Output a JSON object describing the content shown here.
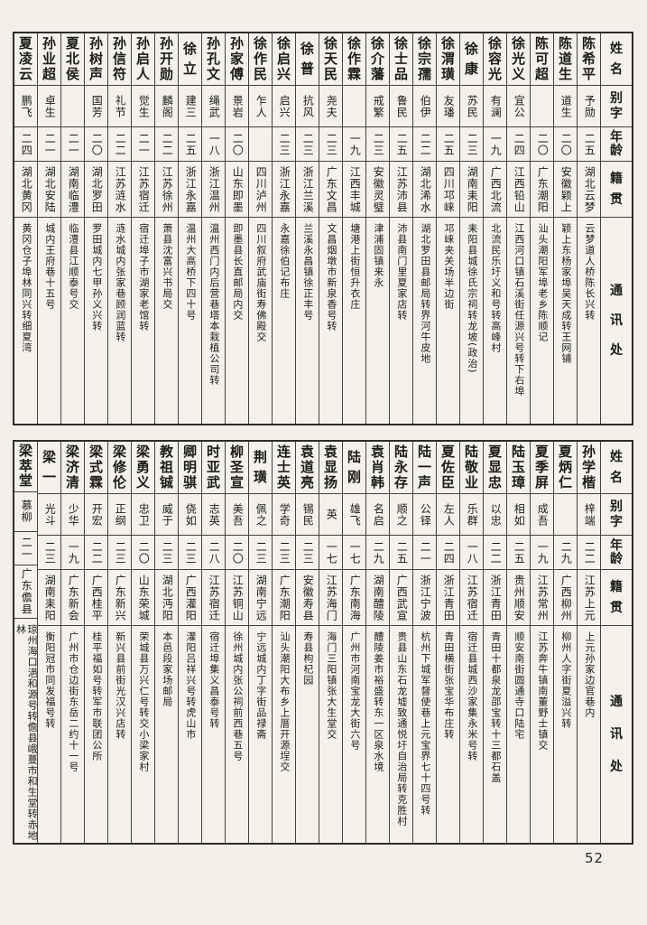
{
  "page": {
    "number": "52"
  },
  "headers": {
    "name": "姓名",
    "alias": "别字",
    "age": "年龄",
    "native": "籍贯",
    "contact": "通讯处"
  },
  "tables": [
    {
      "entries": [
        {
          "name": "陈希平",
          "alias": "予勋",
          "age": "二五",
          "native": "湖北云梦",
          "contact": "云梦道人桥陈长兴转"
        },
        {
          "name": "陈道生",
          "alias": "道生",
          "age": "二〇",
          "native": "安徽颖上",
          "contact": "颖上东杨家埠吴天成转王网铺"
        },
        {
          "name": "陈可超",
          "alias": "",
          "age": "二〇",
          "native": "广东潮阳",
          "contact": "汕头潮阳军埠老乡陈顺记"
        },
        {
          "name": "徐光义",
          "alias": "宜公",
          "age": "二四",
          "native": "江西铅山",
          "contact": "江西河口镇石溪街任源兴号转下右埠"
        },
        {
          "name": "徐容光",
          "alias": "有澜",
          "age": "一九",
          "native": "广西北流",
          "contact": "北流民乐圩义和号转高峰村"
        },
        {
          "name": "徐康",
          "alias": "苏民",
          "age": "二三",
          "native": "湖南耒阳",
          "contact": "耒阳县城徐氏宗祠转龙坡(政治)"
        },
        {
          "name": "徐渭璜",
          "alias": "友璠",
          "age": "二五",
          "native": "四川邛崃",
          "contact": "邛崃夹关场半边街"
        },
        {
          "name": "徐宗孺",
          "alias": "伯伊",
          "age": "二二",
          "native": "湖北浠水",
          "contact": "湖北罗田县邮局转界河牛皮地"
        },
        {
          "name": "徐士品",
          "alias": "鲁民",
          "age": "二五",
          "native": "江苏沛县",
          "contact": "沛县南门里夏家店转"
        },
        {
          "name": "徐介藩",
          "alias": "戒繁",
          "age": "二三",
          "native": "安徽灵璧",
          "contact": "津浦固镇来永"
        },
        {
          "name": "徐作霖",
          "alias": "",
          "age": "一九",
          "native": "江西丰城",
          "contact": "塘港上街恒升衣庄"
        },
        {
          "name": "徐天民",
          "alias": "尧夫",
          "age": "二三",
          "native": "广东文昌",
          "contact": "文昌烟墩市新泉香号转"
        },
        {
          "name": "徐普",
          "alias": "抗风",
          "age": "二三",
          "native": "浙江兰溪",
          "contact": "兰溪永昌镇徐正丰号"
        },
        {
          "name": "徐启兴",
          "alias": "启兴",
          "age": "二三",
          "native": "浙江永嘉",
          "contact": "永嘉徐伯记布庄"
        },
        {
          "name": "徐作民",
          "alias": "乍人",
          "age": "",
          "native": "四川泸州",
          "contact": "四川叙府武庙街寿佛殿交"
        },
        {
          "name": "孙家傅",
          "alias": "景岩",
          "age": "二〇",
          "native": "山东即墨",
          "contact": "即墨县长直邮局内交"
        },
        {
          "name": "孙孔文",
          "alias": "绳武",
          "age": "一八",
          "native": "浙江温州",
          "contact": "温州西门内后营巷塔本栽植公司转"
        },
        {
          "name": "徐立",
          "alias": "建三",
          "age": "二五",
          "native": "浙江永嘉",
          "contact": "温州大高桥下四十号"
        },
        {
          "name": "孙开勋",
          "alias": "麟阁",
          "age": "二二",
          "native": "江苏徐州",
          "contact": "萧县沈富兴书局交"
        },
        {
          "name": "孙启人",
          "alias": "觉生",
          "age": "二一",
          "native": "江苏宿迁",
          "contact": "宿迁埠子市湖家老馆转"
        },
        {
          "name": "孙信符",
          "alias": "礼节",
          "age": "二二",
          "native": "江苏涟水",
          "contact": "涟水城内张家巷顾润蓝转"
        },
        {
          "name": "孙树声",
          "alias": "国芳",
          "age": "二〇",
          "native": "湖北罗田",
          "contact": "罗田城内七甲孙义兴转"
        },
        {
          "name": "夏北侯",
          "alias": "",
          "age": "二一",
          "native": "湖南临澧",
          "contact": "临澧县江顺泰号交"
        },
        {
          "name": "孙业超",
          "alias": "卓生",
          "age": "二一",
          "native": "湖北安陆",
          "contact": "城内王府巷十五号"
        },
        {
          "name": "夏凌云",
          "alias": "鹏飞",
          "age": "二四",
          "native": "湖北黄冈",
          "contact": "黄冈仓子埠林同兴转细夏湾"
        }
      ]
    },
    {
      "entries": [
        {
          "name": "孙学楷",
          "alias": "梓端",
          "age": "二二",
          "native": "江苏上元",
          "contact": "上元孙家边官巷内"
        },
        {
          "name": "夏炳仁",
          "alias": "",
          "age": "二九",
          "native": "广西柳州",
          "contact": "柳州人字街夏溢兴转"
        },
        {
          "name": "夏季屏",
          "alias": "成吾",
          "age": "一九",
          "native": "江苏常州",
          "contact": "江苏奔牛镇南董野士镇交"
        },
        {
          "name": "陆玉璋",
          "alias": "相如",
          "age": "二五",
          "native": "贵州顺安",
          "contact": "顺安南街圆通寺口陆宅"
        },
        {
          "name": "夏显忠",
          "alias": "以忠",
          "age": "二二",
          "native": "浙江青田",
          "contact": "青田十都泉龙邵宝转十三都石盖"
        },
        {
          "name": "陆敬业",
          "alias": "乐群",
          "age": "一八",
          "native": "江苏宿迁",
          "contact": "宿迁县城西沙家集永米号转"
        },
        {
          "name": "夏佐臣",
          "alias": "左人",
          "age": "二四",
          "native": "浙江青田",
          "contact": "青田横街张宝华布庄转"
        },
        {
          "name": "陆一声",
          "alias": "公铎",
          "age": "二一",
          "native": "浙江宁波",
          "contact": "杭州下城军督使巷上元宝界七十四号转"
        },
        {
          "name": "陆永存",
          "alias": "顺之",
          "age": "二五",
          "native": "广西武宣",
          "contact": "贵县山东石龙墟致通悦圩自治局转克胜村"
        },
        {
          "name": "袁肖韩",
          "alias": "名启",
          "age": "二九",
          "native": "湖南醴陵",
          "contact": "醴陵姜市裕盛转东一区泉水境"
        },
        {
          "name": "陆刚",
          "alias": "雄飞",
          "age": "一七",
          "native": "广东南海",
          "contact": "广州市河南宝龙大街六号"
        },
        {
          "name": "袁显扬",
          "alias": "英",
          "age": "一七",
          "native": "江苏海门",
          "contact": "海门三阳镇张大生堂交"
        },
        {
          "name": "袁道亮",
          "alias": "锡民",
          "age": "二三",
          "native": "安徽寿县",
          "contact": "寿县枸杞园"
        },
        {
          "name": "连士英",
          "alias": "学奇",
          "age": "二三",
          "native": "广东潮阳",
          "contact": "汕头潮阳大布乡上厝开源埕交"
        },
        {
          "name": "荆璜",
          "alias": "佩之",
          "age": "二三",
          "native": "湖南宁远",
          "contact": "宁远城内丁字街品禄斋"
        },
        {
          "name": "柳圣宣",
          "alias": "美吾",
          "age": "二〇",
          "native": "江苏铜山",
          "contact": "徐州城内张公祠前西巷五号"
        },
        {
          "name": "时亚武",
          "alias": "志英",
          "age": "二八",
          "native": "江苏宿迁",
          "contact": "宿迁埠集义昌泰号转"
        },
        {
          "name": "卿明骐",
          "alias": "侥如",
          "age": "二三",
          "native": "广西灌阳",
          "contact": "灌阳吕祥兴号转虎山市"
        },
        {
          "name": "教祖铖",
          "alias": "威于",
          "age": "二三",
          "native": "湖北沔阳",
          "contact": "本邑段家场邮局"
        },
        {
          "name": "梁勇义",
          "alias": "忠卫",
          "age": "二〇",
          "native": "山东荣城",
          "contact": "荣城县万兴仁号转交小梁家村"
        },
        {
          "name": "梁修伦",
          "alias": "正纲",
          "age": "二三",
          "native": "广东新兴",
          "contact": "新兴县前街光汉兴店转"
        },
        {
          "name": "梁式霖",
          "alias": "开宏",
          "age": "二二",
          "native": "广西桂平",
          "contact": "桂平福如号转军市联团公所"
        },
        {
          "name": "梁济清",
          "alias": "少华",
          "age": "一九",
          "native": "广东新会",
          "contact": "广州市仓边街东岳二约十一号"
        },
        {
          "name": "梁一",
          "alias": "光斗",
          "age": "二三",
          "native": "湖南耒阳",
          "contact": "衡阳冠市同发福号转"
        },
        {
          "name": "梁萃堂",
          "alias": "慕柳",
          "age": "二一",
          "native": "广东儋县",
          "contact": "琼州海口浥和源号转儋县峨蔓市和生堂转赤地林"
        }
      ]
    }
  ]
}
